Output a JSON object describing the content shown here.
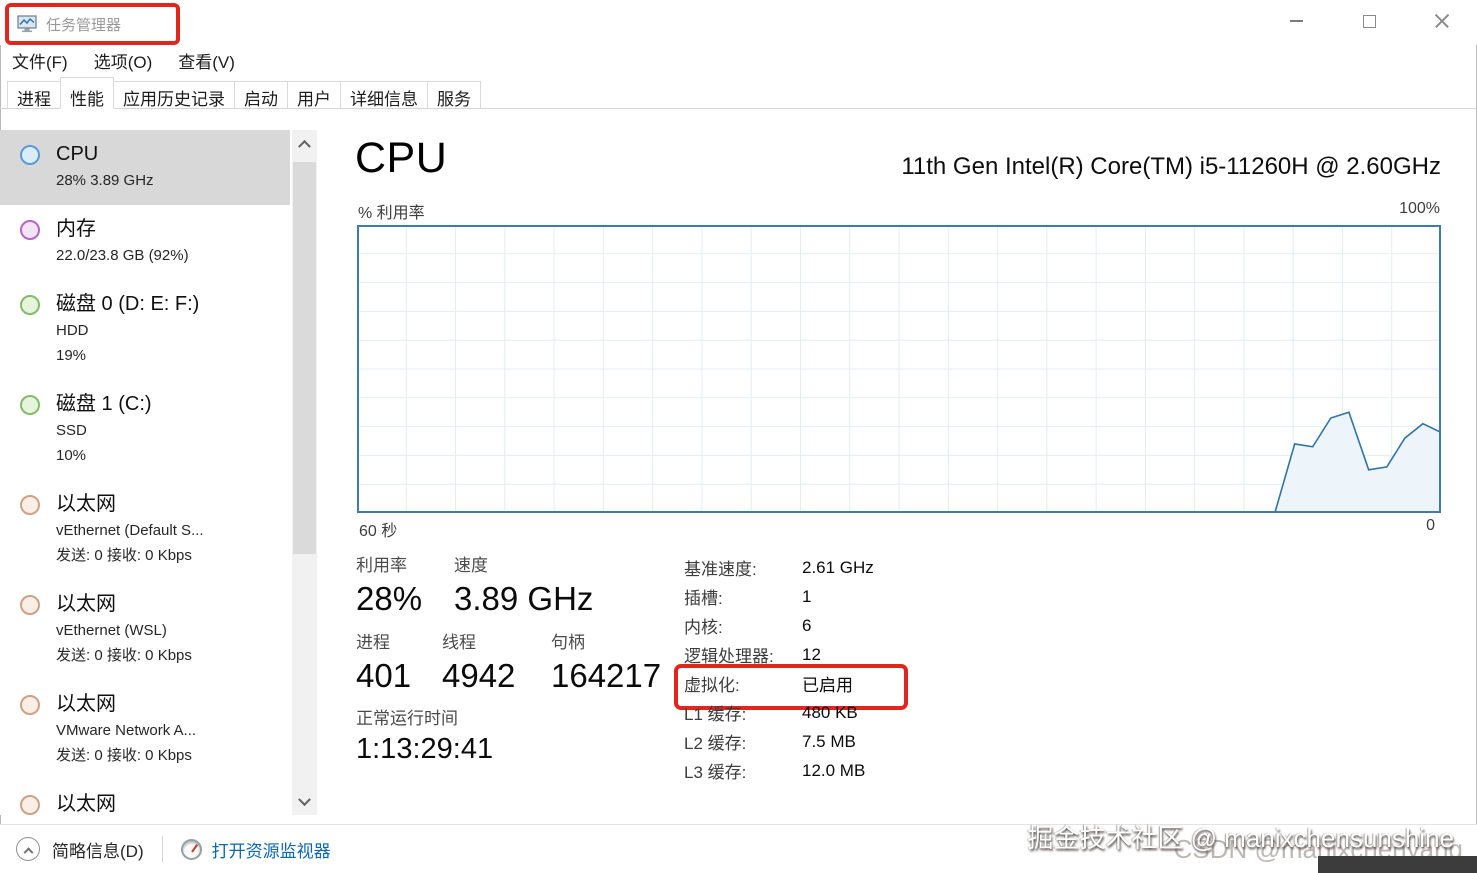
{
  "window": {
    "title": "任务管理器"
  },
  "menu": {
    "items": [
      {
        "label": "文件(F)"
      },
      {
        "label": "选项(O)"
      },
      {
        "label": "查看(V)"
      }
    ]
  },
  "tabs": {
    "items": [
      {
        "label": "进程",
        "active": false
      },
      {
        "label": "性能",
        "active": true
      },
      {
        "label": "应用历史记录",
        "active": false
      },
      {
        "label": "启动",
        "active": false
      },
      {
        "label": "用户",
        "active": false
      },
      {
        "label": "详细信息",
        "active": false
      },
      {
        "label": "服务",
        "active": false
      }
    ]
  },
  "sidebar": {
    "items": [
      {
        "title": "CPU",
        "line1": "28% 3.89 GHz",
        "line2": "",
        "color": "#5b9bd5",
        "fill": "#d9ecf8",
        "selected": true
      },
      {
        "title": "内存",
        "line1": "22.0/23.8 GB (92%)",
        "line2": "",
        "color": "#b566c4",
        "fill": "#f3e4f7",
        "selected": false
      },
      {
        "title": "磁盘 0 (D: E: F:)",
        "line1": "HDD",
        "line2": "19%",
        "color": "#85bb66",
        "fill": "#e7f4dd",
        "selected": false
      },
      {
        "title": "磁盘 1 (C:)",
        "line1": "SSD",
        "line2": "10%",
        "color": "#85bb66",
        "fill": "#e7f4dd",
        "selected": false
      },
      {
        "title": "以太网",
        "line1": "vEthernet (Default S...",
        "line2": "发送: 0 接收: 0 Kbps",
        "color": "#cfa184",
        "fill": "#f9efe7",
        "selected": false
      },
      {
        "title": "以太网",
        "line1": "vEthernet (WSL)",
        "line2": "发送: 0 接收: 0 Kbps",
        "color": "#cfa184",
        "fill": "#f9efe7",
        "selected": false
      },
      {
        "title": "以太网",
        "line1": "VMware Network A...",
        "line2": "发送: 0 接收: 0 Kbps",
        "color": "#cfa184",
        "fill": "#f9efe7",
        "selected": false
      },
      {
        "title": "以太网",
        "line1": "",
        "line2": "",
        "color": "#cfa184",
        "fill": "#f9efe7",
        "selected": false
      }
    ]
  },
  "main": {
    "title": "CPU",
    "cpu_name": "11th Gen Intel(R) Core(TM) i5-11260H @ 2.60GHz",
    "stats": {
      "utilization": {
        "label": "利用率",
        "value": "28%"
      },
      "speed": {
        "label": "速度",
        "value": "3.89 GHz"
      },
      "processes": {
        "label": "进程",
        "value": "401"
      },
      "threads": {
        "label": "线程",
        "value": "4942"
      },
      "handles": {
        "label": "句柄",
        "value": "164217"
      },
      "uptime": {
        "label": "正常运行时间",
        "value": "1:13:29:41"
      }
    },
    "stats_right": [
      {
        "label": "基准速度:",
        "value": "2.61 GHz",
        "highlighted": false
      },
      {
        "label": "插槽:",
        "value": "1",
        "highlighted": false
      },
      {
        "label": "内核:",
        "value": "6",
        "highlighted": false
      },
      {
        "label": "逻辑处理器:",
        "value": "12",
        "highlighted": false
      },
      {
        "label": "虚拟化:",
        "value": "已启用",
        "highlighted": true
      },
      {
        "label": "L1 缓存:",
        "value": "480 KB",
        "highlighted": false
      },
      {
        "label": "L2 缓存:",
        "value": "7.5 MB",
        "highlighted": false
      },
      {
        "label": "L3 缓存:",
        "value": "12.0 MB",
        "highlighted": false
      }
    ]
  },
  "footer": {
    "summary_label": "简略信息(D)",
    "resource_monitor_label": "打开资源监视器"
  },
  "watermarks": {
    "primary": "掘金技术社区 @ manixchensunshine",
    "secondary": "CSDN @manixchenyang"
  },
  "chart_data": {
    "type": "area",
    "title": "CPU % 利用率 (60 秒窗口)",
    "y_label": "% 利用率",
    "y_max_label": "100%",
    "ylim": [
      0,
      100
    ],
    "x_axis": {
      "left_label": "60 秒",
      "right_label": "0",
      "duration_seconds": 60
    },
    "grid": {
      "x_divisions": 22,
      "y_divisions": 10,
      "grid_on": true
    },
    "points": [
      {
        "x": 0,
        "y": 0
      },
      {
        "x": 50.8,
        "y": 0
      },
      {
        "x": 51.9,
        "y": 24
      },
      {
        "x": 52.9,
        "y": 23
      },
      {
        "x": 53.9,
        "y": 33
      },
      {
        "x": 54.9,
        "y": 35
      },
      {
        "x": 56.0,
        "y": 15
      },
      {
        "x": 57.0,
        "y": 16
      },
      {
        "x": 58.0,
        "y": 26
      },
      {
        "x": 59.0,
        "y": 31
      },
      {
        "x": 60.0,
        "y": 28
      }
    ],
    "colors": {
      "border": "#3c7ca6",
      "grid": "#e4edf4",
      "line": "#2f74a3",
      "fill": "#edf4fa"
    }
  }
}
